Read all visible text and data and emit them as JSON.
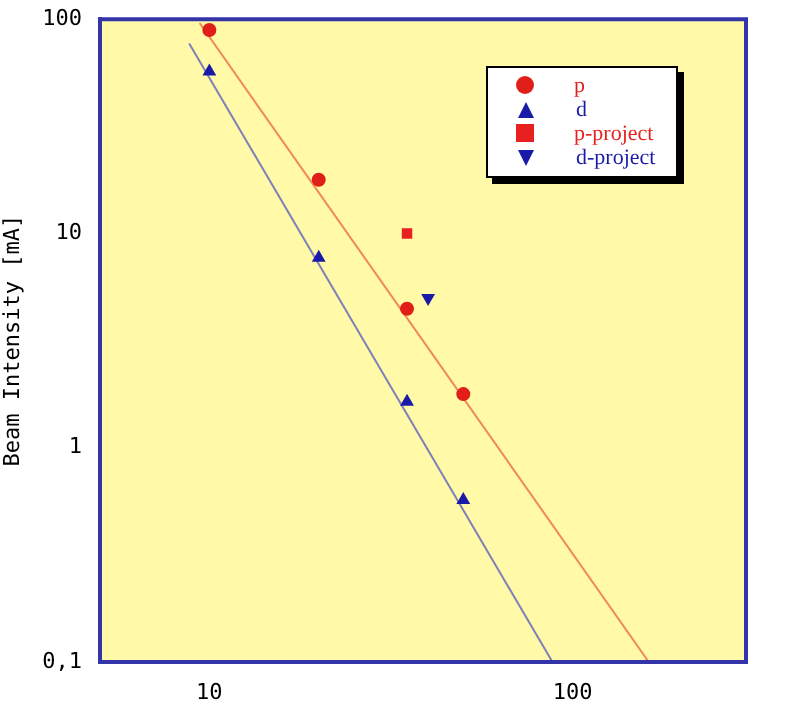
{
  "chart_data": {
    "type": "scatter",
    "ylabel": "Beam Intensity [mA]",
    "log": "xy",
    "xlim": [
      5,
      300
    ],
    "ylim": [
      0.1,
      100
    ],
    "xticks": [
      10,
      100
    ],
    "yticks": [
      {
        "value": 0.1,
        "label": "0,1"
      },
      1,
      10,
      100
    ],
    "grid": false,
    "legend": "top right",
    "series": [
      {
        "name": "p",
        "marker": "circle",
        "color": "#e02018",
        "x": [
          10,
          20,
          35,
          50
        ],
        "values": [
          89,
          17.8,
          4.45,
          1.78
        ]
      },
      {
        "name": "d",
        "marker": "triangle",
        "color": "#1a1aa8",
        "x": [
          10,
          20,
          35,
          50
        ],
        "values": [
          57,
          7.7,
          1.64,
          0.57
        ]
      },
      {
        "name": "p-project",
        "marker": "square",
        "color": "#e82020",
        "x": [
          35
        ],
        "values": [
          10
        ]
      },
      {
        "name": "d-project",
        "marker": "triangle-down",
        "color": "#1a1aa8",
        "x": [
          40
        ],
        "values": [
          5
        ]
      },
      {
        "type": "line",
        "marker": "none",
        "color": "#f08858",
        "x": [
          9.4,
          162
        ],
        "values": [
          96,
          0.1
        ]
      },
      {
        "type": "line",
        "marker": "none",
        "color": "#8080b8",
        "x": [
          8.8,
          88
        ],
        "values": [
          77,
          0.1
        ]
      }
    ]
  }
}
